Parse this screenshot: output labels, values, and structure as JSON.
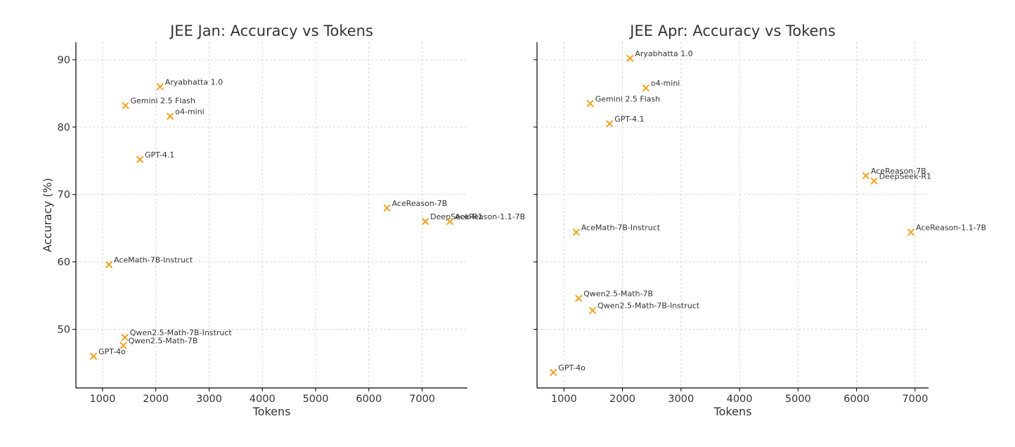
{
  "chart_data": [
    {
      "type": "scatter",
      "title": "JEE Jan: Accuracy vs Tokens",
      "xlabel": "Tokens",
      "ylabel": "Accuracy (%)",
      "xlim": [
        500,
        7850
      ],
      "ylim": [
        41.3,
        92.6
      ],
      "xticks": [
        1000,
        2000,
        3000,
        4000,
        5000,
        6000,
        7000
      ],
      "yticks": [
        50,
        60,
        70,
        80,
        90
      ],
      "grid": true,
      "marker_color": "#f2a11f",
      "points": [
        {
          "label": "Aryabhatta 1.0",
          "x": 2080,
          "y": 86.0
        },
        {
          "label": "Gemini 2.5 Flash",
          "x": 1430,
          "y": 83.2
        },
        {
          "label": "o4-mini",
          "x": 2270,
          "y": 81.6
        },
        {
          "label": "GPT-4.1",
          "x": 1700,
          "y": 75.2
        },
        {
          "label": "AceReason-7B",
          "x": 6340,
          "y": 68.0
        },
        {
          "label": "DeepSeek-R1",
          "x": 7060,
          "y": 66.0
        },
        {
          "label": "AceReason-1.1-7B",
          "x": 7520,
          "y": 66.0
        },
        {
          "label": "AceMath-7B-Instruct",
          "x": 1120,
          "y": 59.6
        },
        {
          "label": "Qwen2.5-Math-7B-Instruct",
          "x": 1420,
          "y": 48.8
        },
        {
          "label": "Qwen2.5-Math-7B",
          "x": 1390,
          "y": 47.6
        },
        {
          "label": "GPT-4o",
          "x": 830,
          "y": 46.0
        }
      ]
    },
    {
      "type": "scatter",
      "title": "JEE Apr: Accuracy vs Tokens",
      "xlabel": "Tokens",
      "ylabel": "",
      "xlim": [
        540,
        7230
      ],
      "ylim": [
        41.3,
        92.6
      ],
      "xticks": [
        1000,
        2000,
        3000,
        4000,
        5000,
        6000,
        7000
      ],
      "yticks": [
        50,
        60,
        70,
        80,
        90
      ],
      "grid": true,
      "marker_color": "#f2a11f",
      "points": [
        {
          "label": "Aryabhatta 1.0",
          "x": 2130,
          "y": 90.2
        },
        {
          "label": "o4-mini",
          "x": 2400,
          "y": 85.8
        },
        {
          "label": "Gemini 2.5 Flash",
          "x": 1450,
          "y": 83.5
        },
        {
          "label": "GPT-4.1",
          "x": 1780,
          "y": 80.5
        },
        {
          "label": "AceReason-7B",
          "x": 6160,
          "y": 72.8
        },
        {
          "label": "DeepSeek-R1",
          "x": 6300,
          "y": 72.0
        },
        {
          "label": "AceReason-1.1-7B",
          "x": 6930,
          "y": 64.4
        },
        {
          "label": "AceMath-7B-Instruct",
          "x": 1210,
          "y": 64.4
        },
        {
          "label": "Qwen2.5-Math-7B",
          "x": 1250,
          "y": 54.6
        },
        {
          "label": "Qwen2.5-Math-7B-Instruct",
          "x": 1490,
          "y": 52.8
        },
        {
          "label": "GPT-4o",
          "x": 820,
          "y": 43.6
        }
      ]
    }
  ]
}
